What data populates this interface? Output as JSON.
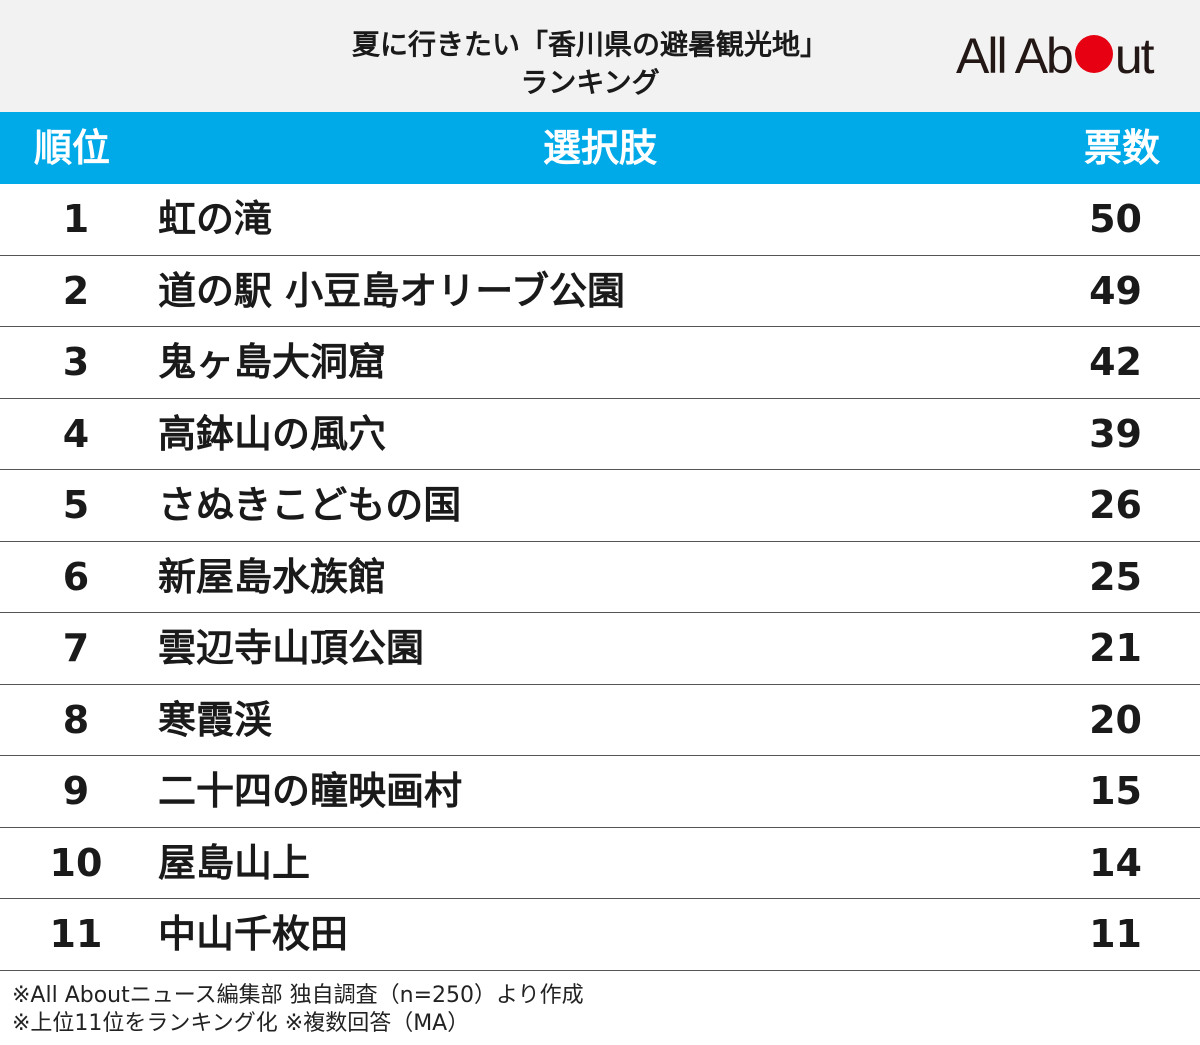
{
  "header": {
    "title_line1": "夏に行きたい「香川県の避暑観光地」",
    "title_line2": "ランキング",
    "logo": {
      "text_before": "All Ab",
      "text_after": "ut",
      "dot_color": "#e60012"
    }
  },
  "columns": {
    "rank": "順位",
    "choice": "選択肢",
    "votes": "票数"
  },
  "colors": {
    "accent": "#00a9e8",
    "header_bg": "#f2f2f2"
  },
  "rows": [
    {
      "rank": "1",
      "name": "虹の滝",
      "votes": "50"
    },
    {
      "rank": "2",
      "name": "道の駅 小豆島オリーブ公園",
      "votes": "49"
    },
    {
      "rank": "3",
      "name": "鬼ヶ島大洞窟",
      "votes": "42"
    },
    {
      "rank": "4",
      "name": "高鉢山の風穴",
      "votes": "39"
    },
    {
      "rank": "5",
      "name": "さぬきこどもの国",
      "votes": "26"
    },
    {
      "rank": "6",
      "name": "新屋島水族館",
      "votes": "25"
    },
    {
      "rank": "7",
      "name": "雲辺寺山頂公園",
      "votes": "21"
    },
    {
      "rank": "8",
      "name": "寒霞渓",
      "votes": "20"
    },
    {
      "rank": "9",
      "name": "二十四の瞳映画村",
      "votes": "15"
    },
    {
      "rank": "10",
      "name": "屋島山上",
      "votes": "14"
    },
    {
      "rank": "11",
      "name": "中山千枚田",
      "votes": "11"
    }
  ],
  "notes": {
    "line1": "※All Aboutニュース編集部 独自調査（n=250）より作成",
    "line2": "※上位11位をランキング化 ※複数回答（MA）"
  }
}
